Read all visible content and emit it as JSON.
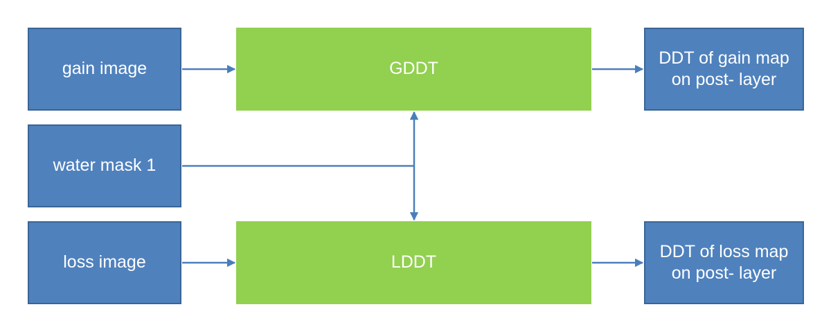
{
  "colors": {
    "input_box": "#4f81bd",
    "input_border": "#3a6595",
    "process_box": "#92d050",
    "connector": "#4a7ebb",
    "text": "#ffffff"
  },
  "nodes": {
    "gain_image": "gain image",
    "water_mask": "water mask 1",
    "loss_image": "loss image",
    "gddt": "GDDT",
    "lddt": "LDDT",
    "gain_output": "DDT of gain map\non post- layer",
    "loss_output": "DDT of loss map\non post- layer"
  },
  "edges": [
    {
      "from": "gain_image",
      "to": "gddt"
    },
    {
      "from": "gddt",
      "to": "gain_output"
    },
    {
      "from": "loss_image",
      "to": "lddt"
    },
    {
      "from": "lddt",
      "to": "loss_output"
    },
    {
      "from": "water_mask",
      "to": "gddt"
    },
    {
      "from": "water_mask",
      "to": "lddt"
    }
  ]
}
